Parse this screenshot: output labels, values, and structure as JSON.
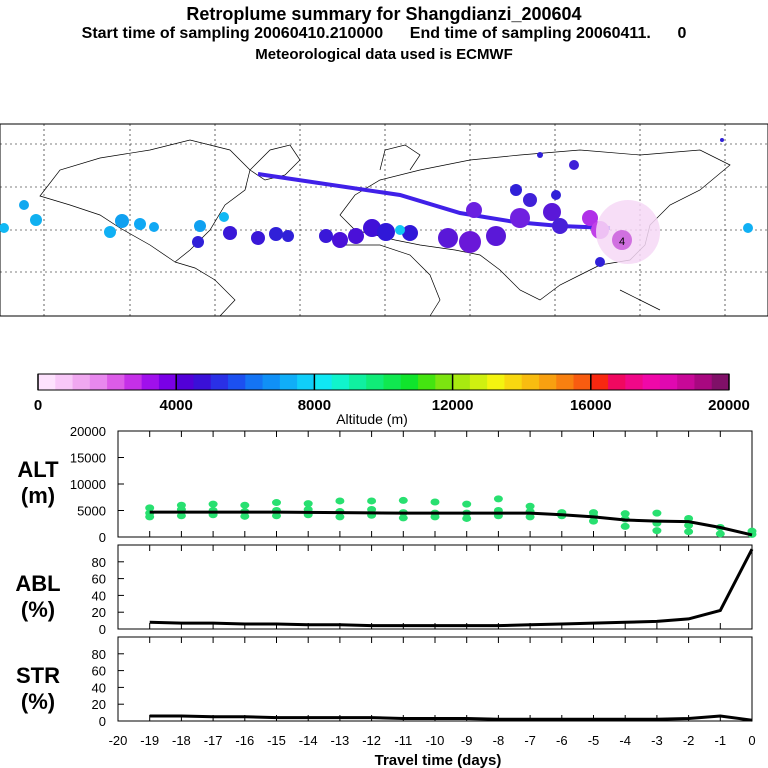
{
  "header": {
    "title": "Retroplume summary for Shangdianzi_200604",
    "line1": "Start time of sampling 20060410.210000      End time of sampling 20060411.      0",
    "line2": "Meteorological data used is ECMWF"
  },
  "colorbar": {
    "label": "Altitude (m)",
    "ticks": [
      "0",
      "4000",
      "8000",
      "12000",
      "16000",
      "20000"
    ],
    "colors": [
      "#fde2fd",
      "#f8c8f8",
      "#f0a8f0",
      "#e888ee",
      "#dc5ce8",
      "#c530e8",
      "#a010ec",
      "#7a00e6",
      "#5200d8",
      "#3a10d8",
      "#2a30e6",
      "#1c50f0",
      "#1474f4",
      "#1090f6",
      "#10aef8",
      "#10cefa",
      "#10e8f4",
      "#10f4cc",
      "#10f0a0",
      "#10ec78",
      "#10e850",
      "#10e42c",
      "#44e410",
      "#7ce410",
      "#a8ea10",
      "#d0f010",
      "#f4f410",
      "#f8d810",
      "#f8bc10",
      "#f8a010",
      "#f88010",
      "#f85c10",
      "#f82810",
      "#f00860",
      "#f00888",
      "#f008a8",
      "#e008b0",
      "#c80898",
      "#a80880",
      "#801068"
    ]
  },
  "map": {
    "source_label": "4"
  },
  "chart_data": [
    {
      "name": "ALT",
      "type": "line",
      "ylabel_top": "ALT",
      "ylabel_bottom": "(m)",
      "ylim": [
        0,
        20000
      ],
      "yticks": [
        "0",
        "5000",
        "10000",
        "15000",
        "20000"
      ],
      "x": [
        -19,
        -18,
        -17,
        -16,
        -15,
        -14,
        -13,
        -12,
        -11,
        -10,
        -9,
        -8,
        -7,
        -6,
        -5,
        -4,
        -3,
        -2,
        -1,
        0
      ],
      "values": [
        4700,
        4700,
        4700,
        4700,
        4700,
        4650,
        4600,
        4550,
        4500,
        4500,
        4500,
        4500,
        4500,
        4200,
        3800,
        3200,
        3000,
        2900,
        1800,
        400
      ],
      "scatter": [
        [
          -19,
          4500
        ],
        [
          -19,
          5500
        ],
        [
          -19,
          3800
        ],
        [
          -18,
          4000
        ],
        [
          -18,
          5200
        ],
        [
          -18,
          6000
        ],
        [
          -17,
          4200
        ],
        [
          -17,
          5000
        ],
        [
          -17,
          6200
        ],
        [
          -16,
          3900
        ],
        [
          -16,
          4800
        ],
        [
          -16,
          6000
        ],
        [
          -15,
          4000
        ],
        [
          -15,
          5000
        ],
        [
          -15,
          6500
        ],
        [
          -14,
          4200
        ],
        [
          -14,
          5200
        ],
        [
          -14,
          6300
        ],
        [
          -13,
          3800
        ],
        [
          -13,
          4800
        ],
        [
          -13,
          6800
        ],
        [
          -12,
          4100
        ],
        [
          -12,
          5200
        ],
        [
          -12,
          6800
        ],
        [
          -11,
          3600
        ],
        [
          -11,
          4600
        ],
        [
          -11,
          6900
        ],
        [
          -10,
          3800
        ],
        [
          -10,
          4500
        ],
        [
          -10,
          6600
        ],
        [
          -9,
          3500
        ],
        [
          -9,
          4500
        ],
        [
          -9,
          6200
        ],
        [
          -8,
          4000
        ],
        [
          -8,
          5000
        ],
        [
          -8,
          7200
        ],
        [
          -7,
          3800
        ],
        [
          -7,
          4800
        ],
        [
          -7,
          5800
        ],
        [
          -6,
          4000
        ],
        [
          -6,
          4600
        ],
        [
          -5,
          3000
        ],
        [
          -5,
          4000
        ],
        [
          -5,
          4600
        ],
        [
          -4,
          2000
        ],
        [
          -4,
          3400
        ],
        [
          -4,
          4400
        ],
        [
          -3,
          1200
        ],
        [
          -3,
          2600
        ],
        [
          -3,
          4500
        ],
        [
          -2,
          1000
        ],
        [
          -2,
          2200
        ],
        [
          -2,
          3500
        ],
        [
          -1,
          600
        ],
        [
          -1,
          1800
        ],
        [
          0,
          500
        ],
        [
          0,
          1100
        ]
      ]
    },
    {
      "name": "ABL",
      "type": "line",
      "ylabel_top": "ABL",
      "ylabel_bottom": "(%)",
      "ylim": [
        0,
        100
      ],
      "yticks": [
        "0",
        "20",
        "40",
        "60",
        "80"
      ],
      "x": [
        -19,
        -18,
        -17,
        -16,
        -15,
        -14,
        -13,
        -12,
        -11,
        -10,
        -9,
        -8,
        -7,
        -6,
        -5,
        -4,
        -3,
        -2,
        -1,
        0
      ],
      "values": [
        8,
        7,
        7,
        6,
        6,
        5,
        5,
        4,
        4,
        4,
        4,
        4,
        5,
        6,
        7,
        8,
        9,
        12,
        22,
        95
      ]
    },
    {
      "name": "STR",
      "type": "line",
      "ylabel_top": "STR",
      "ylabel_bottom": "(%)",
      "ylim": [
        0,
        100
      ],
      "yticks": [
        "0",
        "20",
        "40",
        "60",
        "80"
      ],
      "x": [
        -19,
        -18,
        -17,
        -16,
        -15,
        -14,
        -13,
        -12,
        -11,
        -10,
        -9,
        -8,
        -7,
        -6,
        -5,
        -4,
        -3,
        -2,
        -1,
        0
      ],
      "values": [
        6,
        6,
        5,
        5,
        4,
        4,
        4,
        4,
        3,
        3,
        3,
        2,
        2,
        2,
        2,
        2,
        2,
        3,
        6,
        1
      ]
    }
  ],
  "xaxis": {
    "label": "Travel time (days)",
    "ticks": [
      "-20",
      "-19",
      "-18",
      "-17",
      "-16",
      "-15",
      "-14",
      "-13",
      "-12",
      "-11",
      "-10",
      "-9",
      "-8",
      "-7",
      "-6",
      "-5",
      "-4",
      "-3",
      "-2",
      "-1",
      "0"
    ]
  }
}
